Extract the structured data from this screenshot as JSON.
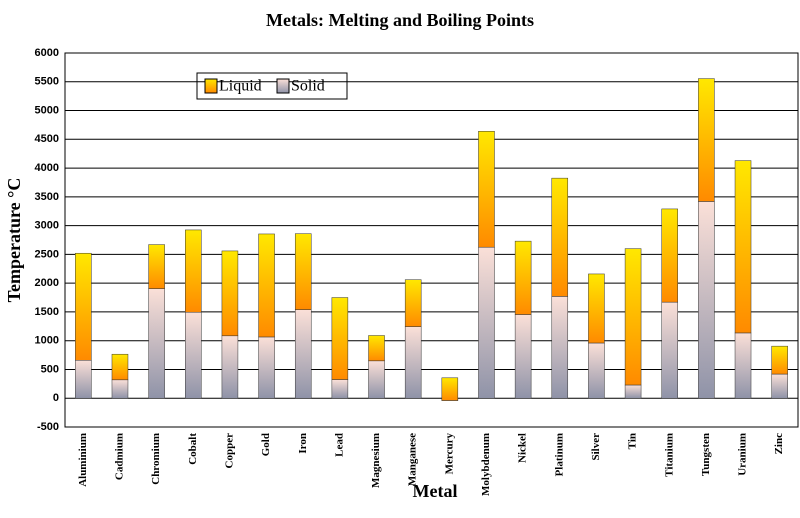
{
  "chart_data": {
    "type": "stacked_bar",
    "title": "Metals: Melting and Boiling Points",
    "x_label": "Metal",
    "y_label": "Temperature °C",
    "categories": [
      "Aluminium",
      "Cadmium",
      "Chromium",
      "Cobalt",
      "Copper",
      "Gold",
      "Iron",
      "Lead",
      "Magnesium",
      "Manganese",
      "Mercury",
      "Molybdenum",
      "Nickel",
      "Platinum",
      "Silver",
      "Tin",
      "Titanium",
      "Tungsten",
      "Uranium",
      "Zinc"
    ],
    "series": [
      {
        "name": "Solid",
        "color": "#e9c9bf",
        "values": [
          660,
          320,
          1905,
          1495,
          1085,
          1065,
          1540,
          325,
          650,
          1245,
          -40,
          2625,
          1455,
          1770,
          960,
          230,
          1670,
          3420,
          1135,
          420
        ]
      },
      {
        "name": "Liquid",
        "color": "#ffd200",
        "values": [
          1860,
          445,
          765,
          1430,
          1475,
          1790,
          1320,
          1425,
          440,
          815,
          395,
          2015,
          1275,
          2055,
          1200,
          2370,
          1620,
          2135,
          2995,
          485
        ]
      }
    ],
    "ylim": [
      -500,
      6000
    ],
    "yticks": [
      -500,
      0,
      500,
      1000,
      1500,
      2000,
      2500,
      3000,
      3500,
      4000,
      4500,
      5000,
      5500,
      6000
    ],
    "grid": true,
    "legend": "top-left"
  }
}
